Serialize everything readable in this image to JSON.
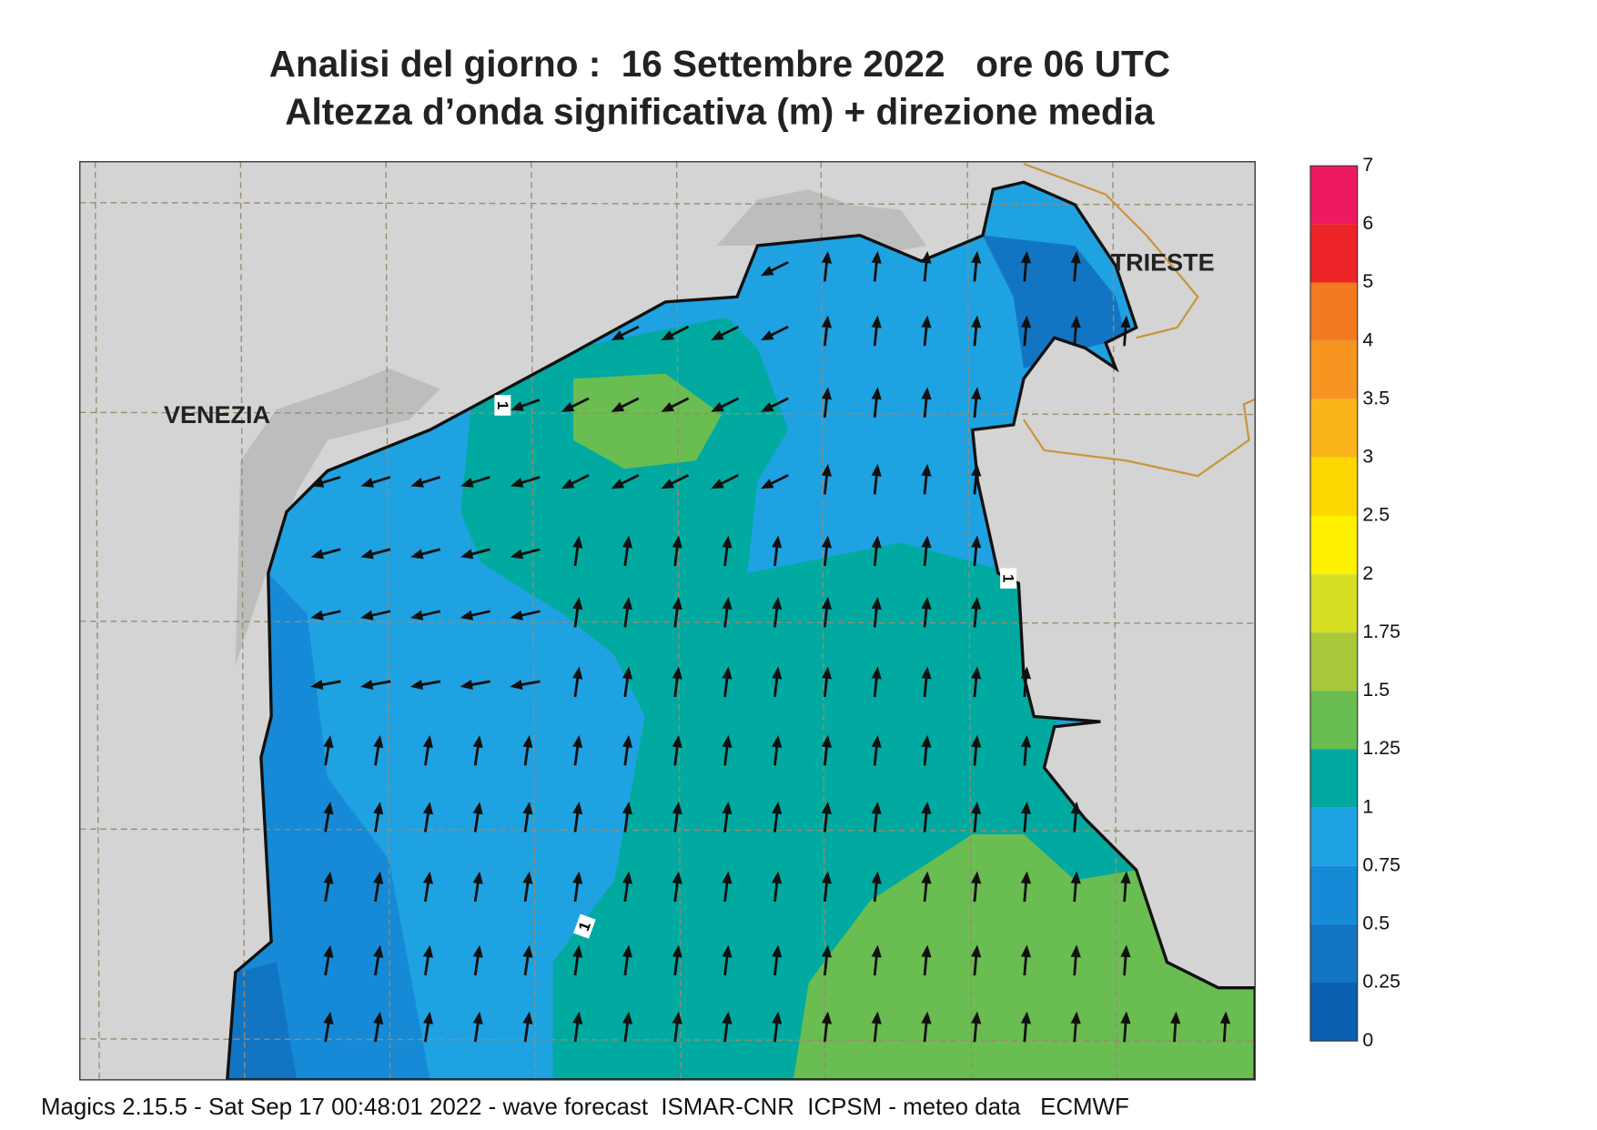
{
  "header": {
    "title": "Analisi del giorno :  16 Settembre 2022   ore 06 UTC",
    "subtitle": "Altezza d’onda significativa (m) + direzione media"
  },
  "map": {
    "labels": [
      "VENEZIA",
      "TRIESTE"
    ],
    "contour_labels": [
      "1",
      "1",
      "1"
    ]
  },
  "legend": {
    "labels": [
      "7",
      "6",
      "5",
      "4",
      "3.5",
      "3",
      "2.5",
      "2",
      "1.75",
      "1.5",
      "1.25",
      "1",
      "0.75",
      "0.5",
      "0.25",
      "0"
    ],
    "colors": [
      "#ee1a5f",
      "#ec2327",
      "#f47a22",
      "#f6951f",
      "#fbb51a",
      "#ffd700",
      "#fff200",
      "#d7df23",
      "#a8c83a",
      "#6abd50",
      "#00aaa0",
      "#1fa2e2",
      "#168ad6",
      "#1275c4",
      "#0a5fb0"
    ]
  },
  "footer": "Magics 2.15.5 - Sat Sep 17 00:48:01 2022 - wave forecast  ISMAR-CNR  ICPSM - meteo data   ECMWF"
}
